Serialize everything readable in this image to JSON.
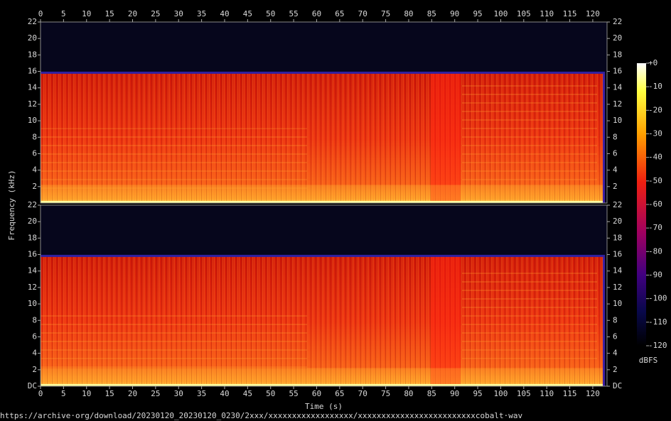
{
  "chart_data": [
    {
      "type": "spectrogram",
      "xlim": [
        0,
        123.1
      ],
      "xticks": [
        0,
        5,
        10,
        15,
        20,
        25,
        30,
        35,
        40,
        45,
        50,
        55,
        60,
        65,
        70,
        75,
        80,
        85,
        90,
        95,
        100,
        105,
        110,
        115,
        120
      ],
      "ylim": [
        0,
        22
      ],
      "yticks": [
        2,
        4,
        6,
        8,
        10,
        12,
        14,
        16,
        18,
        20,
        22
      ]
    },
    {
      "type": "spectrogram",
      "xlabel": "Time (s)",
      "xlim": [
        0,
        123.1
      ],
      "xticks": [
        0,
        5,
        10,
        15,
        20,
        25,
        30,
        35,
        40,
        45,
        50,
        55,
        60,
        65,
        70,
        75,
        80,
        85,
        90,
        95,
        100,
        105,
        110,
        115,
        120
      ],
      "ylim": [
        0,
        22
      ],
      "yticks": [
        {
          "value": 0,
          "label": "DC"
        },
        2,
        4,
        6,
        8,
        10,
        12,
        14,
        16,
        18,
        20,
        22
      ]
    }
  ],
  "ylabel": "Frequency (kHz)",
  "colorbar": {
    "label": "dBFS",
    "lim": [
      -120,
      0
    ],
    "ticks": [
      {
        "value": 0,
        "label": "+0"
      },
      -10,
      -20,
      -30,
      -40,
      -50,
      -60,
      -70,
      -80,
      -90,
      -100,
      -110,
      -120
    ]
  },
  "footer": "https://archive·org/download/20230120_20230120_0230/2xxx/xxxxxxxxxxxxxxxxxx/xxxxxxxxxxxxxxxxxxxxxxxxxcobalt·wav"
}
